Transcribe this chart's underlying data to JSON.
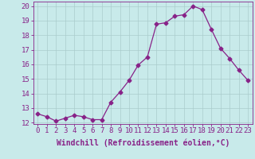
{
  "x": [
    0,
    1,
    2,
    3,
    4,
    5,
    6,
    7,
    8,
    9,
    10,
    11,
    12,
    13,
    14,
    15,
    16,
    17,
    18,
    19,
    20,
    21,
    22,
    23
  ],
  "y": [
    12.6,
    12.4,
    12.1,
    12.3,
    12.5,
    12.4,
    12.2,
    12.2,
    13.4,
    14.1,
    14.9,
    15.95,
    16.5,
    18.75,
    18.85,
    19.3,
    19.4,
    20.0,
    19.75,
    18.4,
    17.1,
    16.4,
    15.6,
    14.9
  ],
  "line_color": "#882288",
  "marker": "D",
  "marker_size": 2.5,
  "bg_color": "#c8eaea",
  "grid_color": "#aacccc",
  "xlabel": "Windchill (Refroidissement éolien,°C)",
  "ylim": [
    12,
    20
  ],
  "xlim": [
    -0.5,
    23.5
  ],
  "yticks": [
    12,
    13,
    14,
    15,
    16,
    17,
    18,
    19,
    20
  ],
  "xticks": [
    0,
    1,
    2,
    3,
    4,
    5,
    6,
    7,
    8,
    9,
    10,
    11,
    12,
    13,
    14,
    15,
    16,
    17,
    18,
    19,
    20,
    21,
    22,
    23
  ],
  "tick_label_fontsize": 6.5,
  "xlabel_fontsize": 7,
  "line_width": 0.9
}
